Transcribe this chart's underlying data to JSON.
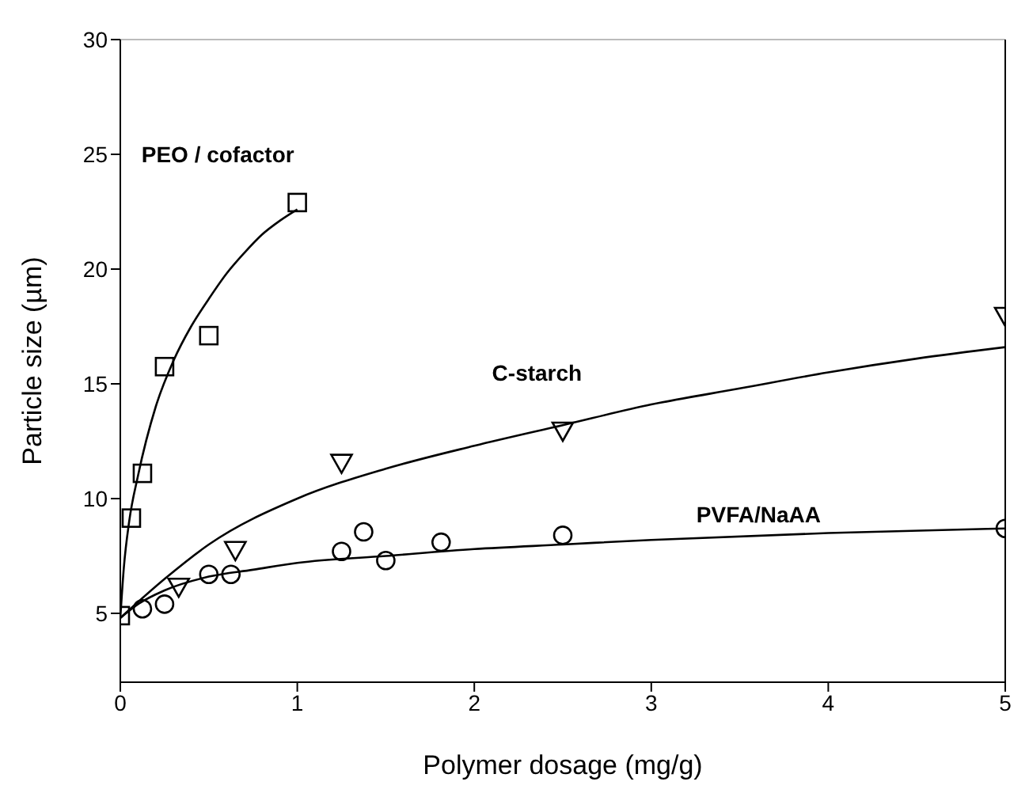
{
  "chart_data": {
    "type": "scatter",
    "xlabel": "Polymer dosage (mg/g)",
    "ylabel": "Particle size (µm)",
    "xlim": [
      0,
      5
    ],
    "xticks": [
      0,
      1,
      2,
      3,
      4,
      5
    ],
    "ylim": [
      2,
      30
    ],
    "yticks": [
      5,
      10,
      15,
      20,
      25,
      30
    ],
    "grid": false,
    "legend": false,
    "series": [
      {
        "marker": "square",
        "color": "#000000",
        "x": [
          0,
          0.0625,
          0.125,
          0.25,
          0.5,
          1
        ],
        "values": [
          4.9,
          9.15,
          11.1,
          15.75,
          17.1,
          22.9
        ]
      },
      {
        "marker": "triangle",
        "color": "#000000",
        "x": [
          0.33,
          0.65,
          1.25,
          2.5,
          5
        ],
        "values": [
          6.2,
          7.8,
          11.6,
          13,
          18
        ]
      },
      {
        "marker": "circle",
        "color": "#000000",
        "x": [
          0.125,
          0.25,
          0.5,
          0.625,
          1.25,
          1.375,
          1.5,
          1.8125,
          2.5,
          5
        ],
        "values": [
          5.2,
          5.4,
          6.7,
          6.7,
          7.7,
          8.55,
          7.3,
          8.1,
          8.4,
          8.7
        ]
      },
      {
        "type": "line",
        "marker": "none",
        "color": "#000000",
        "x": [
          0,
          0.02,
          0.05,
          0.1,
          0.2,
          0.3,
          0.4,
          0.5,
          0.6,
          0.7,
          0.8,
          0.9,
          1
        ],
        "values": [
          4.8,
          7,
          9,
          11,
          14,
          16,
          17.5,
          18.7,
          19.8,
          20.7,
          21.5,
          22.1,
          22.6
        ]
      },
      {
        "type": "line",
        "marker": "none",
        "color": "#000000",
        "x": [
          0,
          0.25,
          0.5,
          1,
          1.5,
          2,
          2.5,
          3,
          3.5,
          4,
          4.5,
          5
        ],
        "values": [
          4.8,
          6.5,
          8,
          10,
          11.3,
          12.3,
          13.2,
          14.1,
          14.8,
          15.5,
          16.1,
          16.6
        ]
      },
      {
        "type": "line",
        "marker": "none",
        "color": "#000000",
        "x": [
          0,
          0.1,
          0.25,
          0.5,
          0.75,
          1,
          1.5,
          2,
          2.5,
          3,
          4,
          5
        ],
        "values": [
          4.8,
          5.4,
          6,
          6.6,
          6.9,
          7.2,
          7.5,
          7.8,
          8,
          8.2,
          8.5,
          8.7
        ]
      }
    ],
    "annotations": [
      "PEO / cofactor",
      "C-starch",
      "PVFA/NaAA"
    ]
  }
}
